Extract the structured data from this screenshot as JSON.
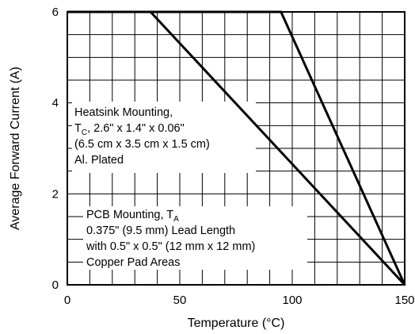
{
  "chart_data": {
    "type": "line",
    "xlabel": "Temperature (°C)",
    "ylabel": "Average Forward Current (A)",
    "xlim": [
      0,
      150
    ],
    "ylim": [
      0,
      6
    ],
    "x_ticks": [
      0,
      50,
      100,
      150
    ],
    "y_ticks": [
      0,
      2,
      4,
      6
    ],
    "grid": true,
    "series": [
      {
        "points": [
          [
            0,
            6
          ],
          [
            37,
            6
          ],
          [
            150,
            0
          ]
        ]
      },
      {
        "points": [
          [
            0,
            6
          ],
          [
            95,
            6
          ],
          [
            150,
            0
          ]
        ]
      }
    ],
    "annotations": [
      {
        "lines": [
          [
            {
              "text": "Heatsink Mounting,"
            }
          ],
          [
            {
              "text": "T"
            },
            {
              "text": "C",
              "sub": true
            },
            {
              "text": ", 2.6\" x 1.4\" x 0.06\""
            }
          ],
          [
            {
              "text": "(6.5 cm x 3.5 cm x 1.5 cm)"
            }
          ],
          [
            {
              "text": "Al. Plated"
            }
          ]
        ]
      },
      {
        "lines": [
          [
            {
              "text": "PCB Mounting, T"
            },
            {
              "text": "A",
              "sub": true
            }
          ],
          [
            {
              "text": "0.375\" (9.5 mm) Lead Length"
            }
          ],
          [
            {
              "text": "with 0.5\" x 0.5\" (12 mm x 12 mm)"
            }
          ],
          [
            {
              "text": "Copper Pad Areas"
            }
          ]
        ]
      }
    ]
  }
}
